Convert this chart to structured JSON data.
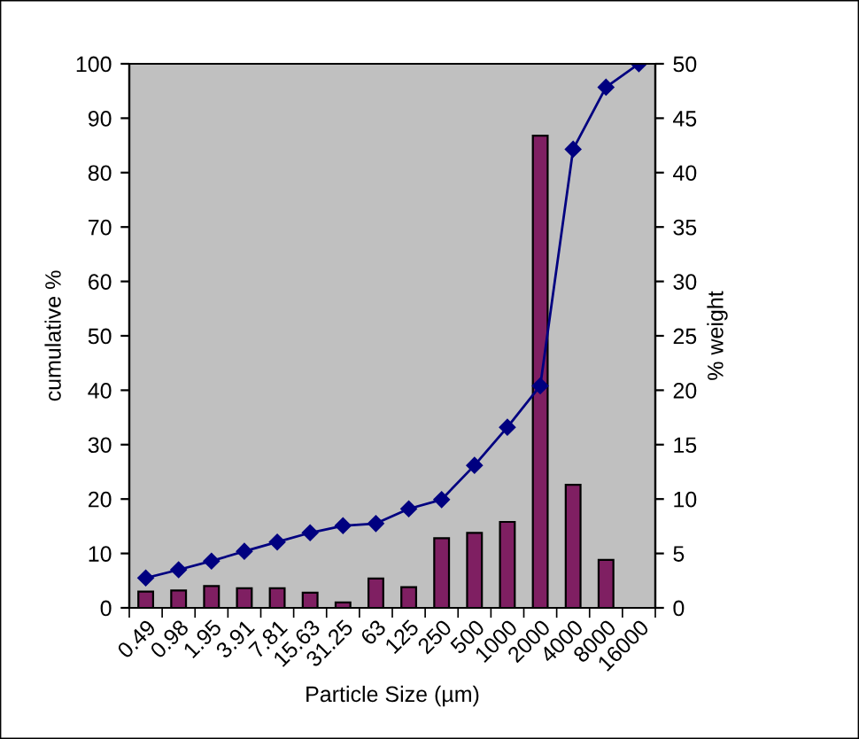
{
  "chart_data": {
    "type": "bar",
    "xlabel": "Particle Size (µm)",
    "ylabel": "cumulative %",
    "y2label": "% weight",
    "categories": [
      "0.49",
      "0.98",
      "1.95",
      "3.91",
      "7.81",
      "15.63",
      "31.25",
      "63",
      "125",
      "250",
      "500",
      "1000",
      "2000",
      "4000",
      "8000",
      "16000"
    ],
    "series": [
      {
        "axis": "y2",
        "color": "#7f1f62",
        "values": [
          1.5,
          1.6,
          2.0,
          1.8,
          1.8,
          1.4,
          0.5,
          2.7,
          1.9,
          6.4,
          6.9,
          7.9,
          43.4,
          11.3,
          4.4,
          null
        ]
      },
      {
        "type": "line",
        "axis": "y",
        "color": "#000080",
        "marker": "diamond",
        "line_style": "solid",
        "values": [
          5.5,
          7.0,
          8.6,
          10.4,
          12.1,
          13.8,
          15.1,
          15.5,
          18.2,
          19.9,
          26.2,
          33.2,
          40.8,
          84.3,
          95.7,
          100
        ]
      }
    ],
    "ylim": [
      0,
      100
    ],
    "yticks": [
      0,
      10,
      20,
      30,
      40,
      50,
      60,
      70,
      80,
      90,
      100
    ],
    "y2lim": [
      0,
      50
    ],
    "y2ticks": [
      0,
      5,
      10,
      15,
      20,
      25,
      30,
      35,
      40,
      45,
      50
    ],
    "grid": false,
    "legend": false
  }
}
